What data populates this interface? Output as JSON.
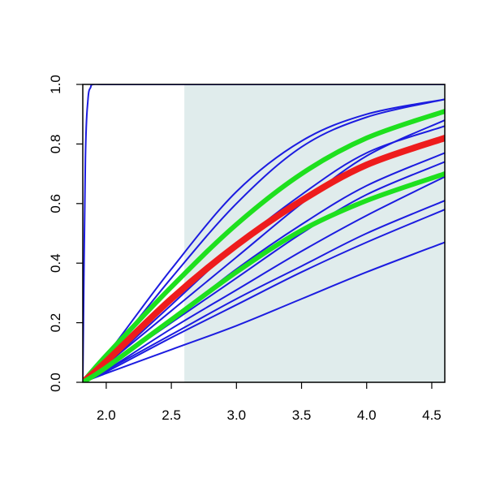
{
  "chart_data": {
    "type": "line",
    "title": "",
    "xlabel": "",
    "ylabel": "",
    "xlim": [
      1.82,
      4.6
    ],
    "ylim": [
      0.0,
      1.0
    ],
    "x_ticks": [
      2.0,
      2.5,
      3.0,
      3.5,
      4.0,
      4.5
    ],
    "x_tick_labels": [
      "2.0",
      "2.5",
      "3.0",
      "3.5",
      "4.0",
      "4.5"
    ],
    "y_ticks": [
      0.0,
      0.2,
      0.4,
      0.6,
      0.8,
      1.0
    ],
    "y_tick_labels": [
      "0.0",
      "0.2",
      "0.4",
      "0.6",
      "0.8",
      "1.0"
    ],
    "grid": false,
    "legend": "none",
    "shaded_region": {
      "x_from": 2.6,
      "x_to": 4.6,
      "color": "#e0ecec"
    },
    "colors": {
      "blue": "#1c1ce0",
      "green": "#1ee01e",
      "red": "#ee1c1c"
    },
    "series": [
      {
        "color": "blue",
        "width": 2,
        "x": [
          1.82,
          1.84,
          1.86,
          1.88,
          1.9,
          2.0,
          2.5,
          3.0,
          3.5,
          4.0,
          4.6
        ],
        "y": [
          0.0,
          0.75,
          0.95,
          0.99,
          1.0,
          1.0,
          1.0,
          1.0,
          1.0,
          1.0,
          1.0
        ]
      },
      {
        "color": "blue",
        "width": 2,
        "x": [
          1.82,
          2.0,
          2.5,
          3.0,
          3.5,
          4.0,
          4.6
        ],
        "y": [
          0.0,
          0.06,
          0.24,
          0.42,
          0.6,
          0.76,
          0.88
        ]
      },
      {
        "color": "blue",
        "width": 2,
        "x": [
          1.82,
          2.0,
          2.5,
          3.0,
          3.5,
          4.0,
          4.6
        ],
        "y": [
          0.0,
          0.09,
          0.38,
          0.64,
          0.81,
          0.9,
          0.95
        ]
      },
      {
        "color": "blue",
        "width": 2,
        "x": [
          1.82,
          2.0,
          2.5,
          3.0,
          3.5,
          4.0,
          4.6
        ],
        "y": [
          0.0,
          0.08,
          0.35,
          0.6,
          0.79,
          0.89,
          0.95
        ]
      },
      {
        "color": "blue",
        "width": 2,
        "x": [
          1.82,
          2.0,
          2.5,
          3.0,
          3.5,
          4.0,
          4.6
        ],
        "y": [
          0.0,
          0.06,
          0.26,
          0.46,
          0.63,
          0.77,
          0.86
        ]
      },
      {
        "color": "blue",
        "width": 2,
        "x": [
          1.82,
          2.0,
          2.5,
          3.0,
          3.5,
          4.0,
          4.6
        ],
        "y": [
          0.0,
          0.05,
          0.21,
          0.38,
          0.53,
          0.66,
          0.77
        ]
      },
      {
        "color": "blue",
        "width": 2,
        "x": [
          1.82,
          2.0,
          2.5,
          3.0,
          3.5,
          4.0,
          4.6
        ],
        "y": [
          0.0,
          0.05,
          0.2,
          0.35,
          0.5,
          0.63,
          0.74
        ]
      },
      {
        "color": "blue",
        "width": 2,
        "x": [
          1.82,
          2.0,
          2.5,
          3.0,
          3.5,
          4.0,
          4.6
        ],
        "y": [
          0.0,
          0.04,
          0.18,
          0.31,
          0.44,
          0.56,
          0.69
        ]
      },
      {
        "color": "blue",
        "width": 2,
        "x": [
          1.82,
          2.0,
          2.5,
          3.0,
          3.5,
          4.0,
          4.6
        ],
        "y": [
          0.0,
          0.04,
          0.16,
          0.28,
          0.39,
          0.5,
          0.61
        ]
      },
      {
        "color": "blue",
        "width": 2,
        "x": [
          1.82,
          2.0,
          2.5,
          3.0,
          3.5,
          4.0,
          4.6
        ],
        "y": [
          0.0,
          0.035,
          0.15,
          0.26,
          0.37,
          0.47,
          0.58
        ]
      },
      {
        "color": "blue",
        "width": 2,
        "x": [
          1.82,
          2.0,
          2.5,
          3.0,
          3.5,
          4.0,
          4.6
        ],
        "y": [
          0.0,
          0.03,
          0.11,
          0.19,
          0.28,
          0.37,
          0.47
        ]
      },
      {
        "color": "green",
        "width": 6,
        "x": [
          1.82,
          2.0,
          2.5,
          3.0,
          3.5,
          4.0,
          4.6
        ],
        "y": [
          0.0,
          0.09,
          0.32,
          0.53,
          0.7,
          0.82,
          0.91
        ]
      },
      {
        "color": "red",
        "width": 8,
        "x": [
          1.82,
          2.0,
          2.5,
          3.0,
          3.5,
          4.0,
          4.6
        ],
        "y": [
          0.0,
          0.07,
          0.28,
          0.46,
          0.61,
          0.73,
          0.82
        ]
      },
      {
        "color": "green",
        "width": 6,
        "x": [
          1.82,
          2.0,
          2.5,
          3.0,
          3.5,
          4.0,
          4.6
        ],
        "y": [
          0.0,
          0.05,
          0.21,
          0.37,
          0.51,
          0.61,
          0.7
        ]
      }
    ]
  }
}
